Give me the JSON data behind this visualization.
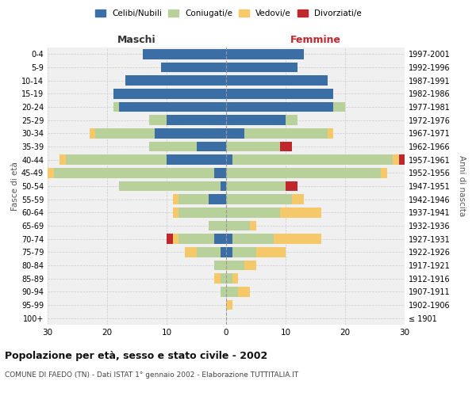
{
  "age_groups": [
    "100+",
    "95-99",
    "90-94",
    "85-89",
    "80-84",
    "75-79",
    "70-74",
    "65-69",
    "60-64",
    "55-59",
    "50-54",
    "45-49",
    "40-44",
    "35-39",
    "30-34",
    "25-29",
    "20-24",
    "15-19",
    "10-14",
    "5-9",
    "0-4"
  ],
  "birth_years": [
    "≤ 1901",
    "1902-1906",
    "1907-1911",
    "1912-1916",
    "1917-1921",
    "1922-1926",
    "1927-1931",
    "1932-1936",
    "1937-1941",
    "1942-1946",
    "1947-1951",
    "1952-1956",
    "1957-1961",
    "1962-1966",
    "1967-1971",
    "1972-1976",
    "1977-1981",
    "1982-1986",
    "1987-1991",
    "1992-1996",
    "1997-2001"
  ],
  "males": {
    "celibi": [
      0,
      0,
      0,
      0,
      0,
      1,
      2,
      0,
      0,
      3,
      1,
      2,
      10,
      5,
      12,
      10,
      18,
      19,
      17,
      11,
      14
    ],
    "coniugati": [
      0,
      0,
      1,
      1,
      2,
      4,
      6,
      3,
      8,
      5,
      17,
      27,
      17,
      8,
      10,
      3,
      1,
      0,
      0,
      0,
      0
    ],
    "vedovi": [
      0,
      0,
      0,
      1,
      0,
      2,
      1,
      0,
      1,
      1,
      0,
      1,
      1,
      0,
      1,
      0,
      0,
      0,
      0,
      0,
      0
    ],
    "divorziati": [
      0,
      0,
      0,
      0,
      0,
      0,
      1,
      0,
      0,
      0,
      0,
      0,
      0,
      0,
      0,
      0,
      0,
      0,
      0,
      0,
      0
    ]
  },
  "females": {
    "nubili": [
      0,
      0,
      0,
      0,
      0,
      1,
      1,
      0,
      0,
      0,
      0,
      0,
      1,
      0,
      3,
      10,
      18,
      18,
      17,
      12,
      13
    ],
    "coniugate": [
      0,
      0,
      2,
      1,
      3,
      4,
      7,
      4,
      9,
      11,
      10,
      26,
      27,
      9,
      14,
      2,
      2,
      0,
      0,
      0,
      0
    ],
    "vedove": [
      0,
      1,
      2,
      1,
      2,
      5,
      8,
      1,
      7,
      2,
      0,
      1,
      1,
      0,
      1,
      0,
      0,
      0,
      0,
      0,
      0
    ],
    "divorziate": [
      0,
      0,
      0,
      0,
      0,
      0,
      0,
      0,
      0,
      0,
      2,
      0,
      1,
      2,
      0,
      0,
      0,
      0,
      0,
      0,
      0
    ]
  },
  "colors": {
    "celibi_nubili": "#3a6ea5",
    "coniugati": "#b8d09a",
    "vedovi": "#f5c96a",
    "divorziati": "#c0272d"
  },
  "xlim": 30,
  "title": "Popolazione per età, sesso e stato civile - 2002",
  "subtitle": "COMUNE DI FAEDO (TN) - Dati ISTAT 1° gennaio 2002 - Elaborazione TUTTITALIA.IT",
  "ylabel_left": "Fasce di età",
  "ylabel_right": "Anni di nascita",
  "xlabel_left": "Maschi",
  "xlabel_right": "Femmine",
  "bg_color": "#f0f0f0",
  "grid_color": "#cccccc"
}
